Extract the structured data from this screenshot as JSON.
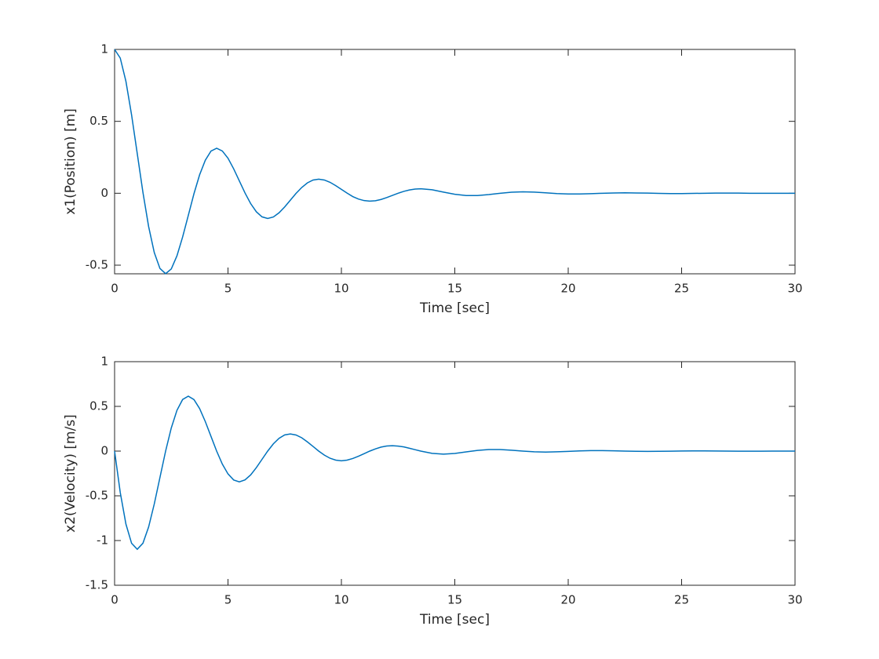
{
  "chart_data": [
    {
      "type": "line",
      "xlabel": "Time [sec]",
      "ylabel": "x1(Position) [m]",
      "x": [
        0,
        0.25,
        0.5,
        0.75,
        1,
        1.25,
        1.5,
        1.75,
        2,
        2.25,
        2.5,
        2.75,
        3,
        3.25,
        3.5,
        3.75,
        4,
        4.25,
        4.5,
        4.75,
        5,
        5.25,
        5.5,
        5.75,
        6,
        6.25,
        6.5,
        6.75,
        7,
        7.25,
        7.5,
        7.75,
        8,
        8.25,
        8.5,
        8.75,
        9,
        9.25,
        9.5,
        9.75,
        10,
        10.25,
        10.5,
        10.75,
        11,
        11.25,
        11.5,
        11.75,
        12,
        12.25,
        12.5,
        12.75,
        13,
        13.25,
        13.5,
        14,
        14.5,
        15,
        15.5,
        16,
        16.5,
        17,
        17.5,
        18,
        18.5,
        19,
        19.5,
        20,
        20.5,
        21,
        21.5,
        22,
        22.5,
        23,
        23.5,
        24,
        24.5,
        25,
        25.5,
        26,
        26.5,
        27,
        27.5,
        28,
        28.5,
        29,
        29.5,
        30
      ],
      "series": [
        {
          "color": "#0072bd",
          "values": [
            1,
            0.94,
            0.778,
            0.544,
            0.275,
            0.006,
            -0.231,
            -0.412,
            -0.523,
            -0.559,
            -0.526,
            -0.435,
            -0.304,
            -0.154,
            -0.003,
            0.129,
            0.23,
            0.293,
            0.313,
            0.294,
            0.244,
            0.17,
            0.086,
            0.002,
            -0.072,
            -0.129,
            -0.164,
            -0.175,
            -0.165,
            -0.136,
            -0.095,
            -0.048,
            -0.001,
            0.04,
            0.072,
            0.092,
            0.098,
            0.092,
            0.076,
            0.053,
            0.027,
            0.001,
            -0.023,
            -0.04,
            -0.051,
            -0.055,
            -0.052,
            -0.043,
            -0.03,
            -0.015,
            0,
            0.013,
            0.023,
            0.029,
            0.031,
            0.024,
            0.008,
            -0.007,
            -0.016,
            -0.016,
            -0.009,
            0,
            0.007,
            0.01,
            0.008,
            0.003,
            -0.002,
            -0.005,
            -0.005,
            -0.003,
            0,
            0.002,
            0.003,
            0.002,
            0.001,
            -0.001,
            -0.002,
            -0.002,
            -0.001,
            0,
            0.001,
            0.001,
            0.001,
            0,
            0,
            0,
            0,
            0
          ]
        }
      ],
      "xlim": [
        0,
        30
      ],
      "xticks": [
        0,
        5,
        10,
        15,
        20,
        25,
        30
      ],
      "ylim": [
        -0.56,
        1
      ],
      "yticks": [
        -0.5,
        0,
        0.5,
        1
      ]
    },
    {
      "type": "line",
      "xlabel": "Time [sec]",
      "ylabel": "x2(Velocity) [m/s]",
      "x": [
        0,
        0.25,
        0.5,
        0.75,
        1,
        1.25,
        1.5,
        1.75,
        2,
        2.25,
        2.5,
        2.75,
        3,
        3.25,
        3.5,
        3.75,
        4,
        4.25,
        4.5,
        4.75,
        5,
        5.25,
        5.5,
        5.75,
        6,
        6.25,
        6.5,
        6.75,
        7,
        7.25,
        7.5,
        7.75,
        8,
        8.25,
        8.5,
        8.75,
        9,
        9.25,
        9.5,
        9.75,
        10,
        10.25,
        10.5,
        10.75,
        11,
        11.25,
        11.5,
        11.75,
        12,
        12.25,
        12.5,
        12.75,
        13,
        13.25,
        13.5,
        14,
        14.5,
        15,
        15.5,
        16,
        16.5,
        17,
        17.5,
        18,
        18.5,
        19,
        19.5,
        20,
        20.5,
        21,
        21.5,
        22,
        22.5,
        23,
        23.5,
        24,
        24.5,
        25,
        25.5,
        26,
        26.5,
        27,
        27.5,
        28,
        28.5,
        29,
        29.5,
        30
      ],
      "series": [
        {
          "color": "#0072bd",
          "values": [
            0,
            -0.463,
            -0.816,
            -1.031,
            -1.098,
            -1.03,
            -0.849,
            -0.591,
            -0.295,
            0,
            0.259,
            0.456,
            0.577,
            0.614,
            0.576,
            0.475,
            0.33,
            0.165,
            0,
            -0.145,
            -0.255,
            -0.323,
            -0.344,
            -0.322,
            -0.266,
            -0.185,
            -0.092,
            0,
            0.081,
            0.143,
            0.181,
            0.192,
            0.18,
            0.149,
            0.103,
            0.052,
            0,
            -0.045,
            -0.08,
            -0.101,
            -0.108,
            -0.101,
            -0.083,
            -0.058,
            -0.029,
            0,
            0.025,
            0.045,
            0.057,
            0.06,
            0.056,
            0.047,
            0.032,
            0.016,
            0,
            -0.025,
            -0.034,
            -0.026,
            -0.009,
            0.008,
            0.018,
            0.018,
            0.01,
            0,
            -0.008,
            -0.011,
            -0.008,
            -0.003,
            0.002,
            0.006,
            0.006,
            0.003,
            0,
            -0.002,
            -0.003,
            -0.002,
            -0.001,
            0.001,
            0.002,
            0.002,
            0.001,
            0,
            -0.001,
            -0.001,
            -0.001,
            0,
            0,
            0
          ]
        }
      ],
      "xlim": [
        0,
        30
      ],
      "xticks": [
        0,
        5,
        10,
        15,
        20,
        25,
        30
      ],
      "ylim": [
        -1.5,
        1
      ],
      "yticks": [
        -1.5,
        -1,
        -0.5,
        0,
        0.5,
        1
      ]
    }
  ]
}
